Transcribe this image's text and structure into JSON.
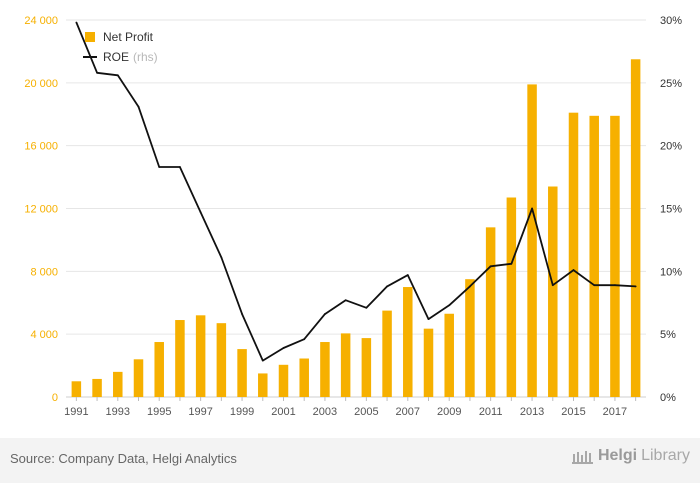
{
  "chart_data": {
    "type": "bar",
    "series": [
      {
        "name": "Net Profit",
        "type": "bar",
        "axis": "left",
        "values": [
          1000,
          1150,
          1600,
          2400,
          3500,
          4900,
          5200,
          4700,
          3050,
          1500,
          2050,
          2450,
          3500,
          4050,
          3750,
          5500,
          7000,
          4350,
          5300,
          7500,
          10800,
          12700,
          19900,
          13400,
          18100,
          17900,
          17900,
          21500
        ]
      },
      {
        "name": "ROE",
        "name_suffix": "(rhs)",
        "type": "line",
        "axis": "right",
        "values": [
          29.8,
          25.8,
          25.6,
          23.1,
          18.3,
          18.3,
          14.7,
          11.1,
          6.6,
          2.9,
          3.9,
          4.6,
          6.6,
          7.7,
          7.1,
          8.8,
          9.7,
          6.2,
          7.3,
          8.8,
          10.4,
          10.6,
          15.0,
          8.9,
          10.1,
          8.9,
          8.9,
          8.8
        ]
      }
    ],
    "categories": [
      "1991",
      "1992",
      "1993",
      "1994",
      "1995",
      "1996",
      "1997",
      "1998",
      "1999",
      "2000",
      "2001",
      "2002",
      "2003",
      "2004",
      "2005",
      "2006",
      "2007",
      "2008",
      "2009",
      "2010",
      "2011",
      "2012",
      "2013",
      "2014",
      "2015",
      "2016",
      "2017",
      "2018"
    ],
    "x_tick_labels": [
      "1991",
      "1993",
      "1995",
      "1997",
      "1999",
      "2001",
      "2003",
      "2005",
      "2007",
      "2009",
      "2011",
      "2013",
      "2015",
      "2017"
    ],
    "y_left": {
      "ylim": [
        0,
        24000
      ],
      "ticks": [
        "0",
        "4 000",
        "8 000",
        "12 000",
        "16 000",
        "20 000",
        "24 000"
      ],
      "tick_values": [
        0,
        4000,
        8000,
        12000,
        16000,
        20000,
        24000
      ]
    },
    "y_right": {
      "ylim": [
        0,
        30
      ],
      "ticks": [
        "0%",
        "5%",
        "10%",
        "15%",
        "20%",
        "25%",
        "30%"
      ],
      "tick_values": [
        0,
        5,
        10,
        15,
        20,
        25,
        30
      ]
    },
    "grid": true,
    "legend_position": "top-left",
    "colors": {
      "bar": "#f6b000",
      "line": "#111111",
      "grid": "#e6e6e6",
      "left_tick_text": "#f6b000",
      "right_tick_text": "#333333",
      "x_tick_text": "#555555"
    }
  },
  "footer": {
    "source": "Source: Company Data, Helgi Analytics",
    "brand_bold": "Helgi",
    "brand_thin": "Library"
  }
}
